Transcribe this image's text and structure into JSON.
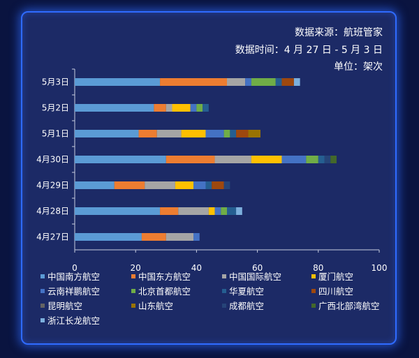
{
  "source": {
    "line1": "数据来源：航班管家",
    "line2": "数据时间：4 月 27 日 - 5 月 3 日",
    "line3": "单位：架次"
  },
  "chart_data": {
    "type": "bar",
    "orientation": "horizontal",
    "stacked": true,
    "categories": [
      "5月3日",
      "5月2日",
      "5月1日",
      "4月30日",
      "4月29日",
      "4月28日",
      "4月27日"
    ],
    "xlim": [
      0,
      100
    ],
    "xticks": [
      "0",
      "20",
      "40",
      "60",
      "80",
      "100"
    ],
    "grid": false,
    "legend_position": "bottom",
    "series": [
      {
        "name": "中国南方航空",
        "color": "#5b9bd5",
        "values": [
          28,
          26,
          21,
          30,
          13,
          28,
          22
        ]
      },
      {
        "name": "中国东方航空",
        "color": "#ed7d31",
        "values": [
          22,
          4,
          6,
          16,
          10,
          6,
          8
        ]
      },
      {
        "name": "中国国际航空",
        "color": "#a5a5a5",
        "values": [
          6,
          2,
          8,
          12,
          10,
          10,
          9
        ]
      },
      {
        "name": "厦门航空",
        "color": "#ffc000",
        "values": [
          0,
          6,
          8,
          10,
          6,
          2,
          0
        ]
      },
      {
        "name": "云南祥鹏航空",
        "color": "#4472c4",
        "values": [
          2,
          2,
          6,
          8,
          4,
          2,
          2
        ]
      },
      {
        "name": "北京首都航空",
        "color": "#70ad47",
        "values": [
          8,
          2,
          2,
          4,
          0,
          2,
          0
        ]
      },
      {
        "name": "华夏航空",
        "color": "#255e91",
        "values": [
          2,
          2,
          2,
          2,
          2,
          3,
          0
        ]
      },
      {
        "name": "四川航空",
        "color": "#9e480e",
        "values": [
          4,
          0,
          4,
          0,
          4,
          0,
          0
        ]
      },
      {
        "name": "昆明航空",
        "color": "#636363",
        "values": [
          0,
          0,
          0,
          0,
          0,
          0,
          0
        ]
      },
      {
        "name": "山东航空",
        "color": "#997300",
        "values": [
          0,
          0,
          4,
          0,
          0,
          0,
          0
        ]
      },
      {
        "name": "成都航空",
        "color": "#264478",
        "values": [
          0,
          0,
          0,
          2,
          2,
          0,
          0
        ]
      },
      {
        "name": "广西北部湾航空",
        "color": "#43682b",
        "values": [
          0,
          0,
          0,
          2,
          0,
          0,
          0
        ]
      },
      {
        "name": "浙江长龙航空",
        "color": "#7cafdd",
        "values": [
          2,
          0,
          0,
          0,
          0,
          2,
          0
        ]
      }
    ]
  }
}
